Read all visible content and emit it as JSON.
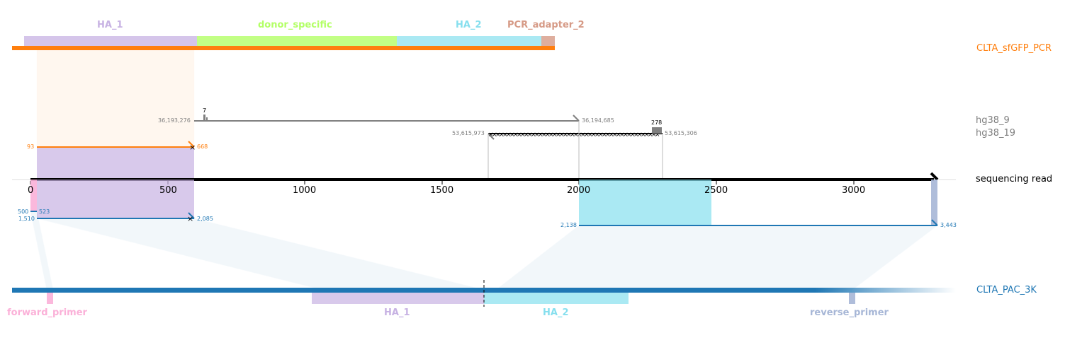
{
  "colors": {
    "ha1": "#c7b2e3",
    "donor_specific": "#b3ff66",
    "ha2": "#86dfee",
    "pcr_adapter": "#d69a86",
    "forward_primer": "#fbb0d8",
    "reverse_primer": "#a6b6d6",
    "donor_line": "#ff7f0e",
    "pac_line": "#1f77b4",
    "hg38_9": "#7f7f7f",
    "hg38_19": "#000000"
  },
  "targets": {
    "donor": "CLTA_sfGFP_PCR",
    "hg38_9": "hg38_9",
    "hg38_19": "hg38_19",
    "read": "sequencing read",
    "pac": "CLTA_PAC_3K"
  },
  "top_features": {
    "ha1": "HA_1",
    "donor_specific": "donor_specific",
    "ha2": "HA_2",
    "pcr_adapter": "PCR_adapter_2"
  },
  "bottom_features": {
    "forward_primer": "forward_primer",
    "ha1": "HA_1",
    "ha2": "HA_2",
    "reverse_primer": "reverse_primer"
  },
  "axis": {
    "ticks": [
      "0",
      "500",
      "1000",
      "1500",
      "2000",
      "2500",
      "3000"
    ]
  },
  "alignment_labels": {
    "donor_start": "93",
    "donor_end": "668",
    "hg38_9_start": "36,193,276",
    "hg38_9_end": "36,194,685",
    "hg38_9_mismatch": "7",
    "hg38_19_start": "53,615,973",
    "hg38_19_end": "53,615,306",
    "hg38_19_mismatch": "278",
    "pac1_start_a": "500",
    "pac1_start_b": "523",
    "pac1_start_c": "1,510",
    "pac1_end": "2,085",
    "pac2_start": "2,138",
    "pac2_end": "3,443"
  }
}
